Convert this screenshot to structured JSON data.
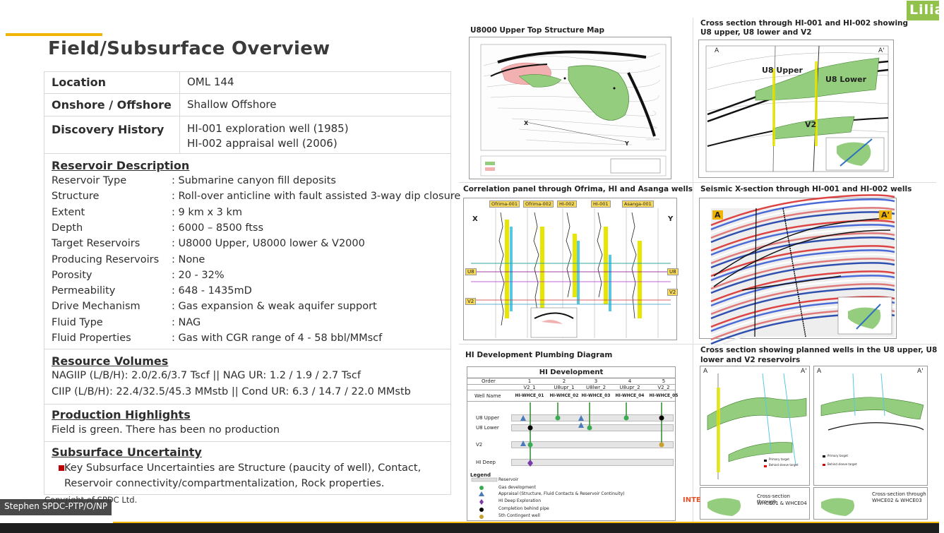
{
  "slide": {
    "title": "Field/Subsurface Overview",
    "copyright": "Copyright of SPDC Ltd.",
    "presenter_tag": "Stephen SPDC-PTP/O/NP",
    "brand_badge": "Lilia",
    "footer_fragment": "INTE"
  },
  "field": {
    "location_label": "Location",
    "location_value": "OML 144",
    "onoff_label": "Onshore / Offshore",
    "onoff_value": "Shallow Offshore",
    "discovery_label": "Discovery History",
    "discovery_line1": "HI-001 exploration well (1985)",
    "discovery_line2": "HI-002 appraisal well (2006)"
  },
  "reservoir": {
    "heading": "Reservoir Description",
    "props": [
      {
        "label": "Reservoir Type",
        "value": ": Submarine canyon fill deposits"
      },
      {
        "label": "Structure",
        "value": ": Roll-over anticline with fault assisted 3-way dip closure"
      },
      {
        "label": "Extent",
        "value": ": 9 km x 3 km"
      },
      {
        "label": "Depth",
        "value": ": 6000 – 8500 ftss"
      },
      {
        "label": "Target Reservoirs",
        "value": ": U8000 Upper, U8000 lower & V2000"
      },
      {
        "label": "Producing Reservoirs",
        "value": ": None"
      },
      {
        "label": "Porosity",
        "value": ": 20 - 32%"
      },
      {
        "label": "Permeability",
        "value": ": 648 - 1435mD"
      },
      {
        "label": "Drive Mechanism",
        "value": ": Gas expansion & weak aquifer support"
      },
      {
        "label": "Fluid Type",
        "value": ": NAG"
      },
      {
        "label": "Fluid Properties",
        "value": ": Gas with CGR range of 4 - 58 bbl/MMscf"
      }
    ]
  },
  "resources": {
    "heading": "Resource Volumes",
    "line1": "NAGIIP (L/B/H):   2.0/2.6/3.7 Tscf        ||  NAG UR: 1.2 / 1.9 / 2.7 Tscf",
    "line2": "CIIP (L/B/H):    22.4/32.5/45.3 MMstb  ||  Cond UR: 6.3 / 14.7 / 22.0 MMstb"
  },
  "production": {
    "heading": "Production Highlights",
    "text": "Field is green. There has been no production"
  },
  "uncertainty": {
    "heading": "Subsurface Uncertainty",
    "line1": "Key Subsurface Uncertainties are Structure (paucity of well), Contact,",
    "line2": "Reservoir connectivity/compartmentalization, Rock properties."
  },
  "panels": {
    "map_title": "U8000 Upper Top Structure Map",
    "xsec1_title_1": "Cross section through HI-001 and HI-002 showing",
    "xsec1_title_2": "U8 upper, U8 lower and V2",
    "corr_title": "Correlation panel through Ofrima, HI and Asanga wells",
    "seismic_title": "Seismic X-section through HI-001 and HI-002 wells",
    "plumb_title": "HI Development Plumbing Diagram",
    "planned_title_1": "Cross section showing planned wells in the U8 upper, U8",
    "planned_title_2": "lower and V2 reservoirs"
  },
  "map": {
    "x_label": "X",
    "y_label": "Y"
  },
  "xsec1": {
    "a": "A",
    "a2": "A'",
    "u8_upper": "U8 Upper",
    "u8_lower": "U8 Lower",
    "v2": "V2"
  },
  "corr": {
    "x": "X",
    "y": "Y",
    "wells": [
      "Ofrima-001",
      "Ofrima-002",
      "HI-002",
      "HI-001",
      "Asanga-001"
    ],
    "u8": "U8",
    "v2": "V2"
  },
  "seismic": {
    "a": "A",
    "a2": "A'"
  },
  "plumbing": {
    "header": "HI Development",
    "order_label": "Order",
    "well_label": "Well Name",
    "orders": [
      "1",
      "2",
      "3",
      "4",
      "5"
    ],
    "subs": [
      "V2_1",
      "U8upr_1",
      "U8lwr_2",
      "U8upr_2",
      "V2_2"
    ],
    "wells": [
      "HI-WHCE_01",
      "HI-WHCE_02",
      "HI-WHCE_03",
      "HI-WHCE_04",
      "HI-WHCE_05"
    ],
    "rows": [
      "U8 Upper",
      "U8 Lower",
      "V2",
      "HI Deep"
    ],
    "legend_title": "Legend",
    "legend": [
      "Reservoir",
      "Gas development",
      "Appraisal (Structure, Fluid Contacts & Reservoir Continuity)",
      "HI Deep Exploration",
      "Completion behind pipe",
      "5th Contingent well"
    ]
  },
  "planned": {
    "a": "A",
    "a2": "A'",
    "primary": "Primary target",
    "behind": "Behind sleeve target",
    "cap1_1": "Cross-section through",
    "cap1_2": "WHCE01 & WHCE04",
    "cap2_1": "Cross-section through",
    "cap2_2": "WHCE02 & WHCE03"
  },
  "colors": {
    "accent": "#f0b400",
    "badge": "#92c24c",
    "gas_green": "#8fcf7a",
    "bullet_red": "#c00000"
  }
}
